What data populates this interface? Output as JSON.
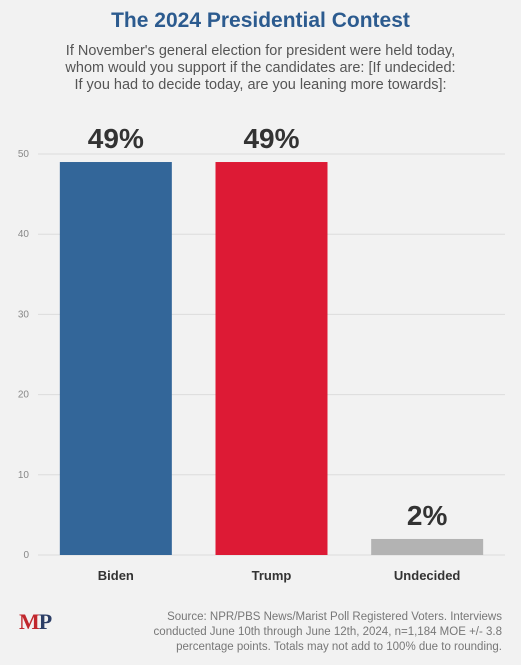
{
  "header": {
    "title": "The 2024 Presidential Contest",
    "subtitle_lines": [
      "If November's general election for president were held today,",
      "whom would you support if the candidates are: [If undecided:",
      "If you had to decide today, are you leaning more towards]:"
    ]
  },
  "chart_data": {
    "type": "bar",
    "categories": [
      "Biden",
      "Trump",
      "Undecided"
    ],
    "values": [
      49,
      49,
      2
    ],
    "data_labels": [
      "49%",
      "49%",
      "2%"
    ],
    "colors": [
      "#336699",
      "#dd1a35",
      "#b3b3b3"
    ],
    "yticks": [
      "0",
      "10",
      "20",
      "30",
      "40",
      "50"
    ],
    "ylim": [
      0,
      50
    ],
    "grid": true,
    "title": "The 2024 Presidential Contest"
  },
  "footer": {
    "logo_m": "M",
    "logo_p": "P",
    "source_lines": [
      "Source: NPR/PBS News/Marist Poll Registered Voters. Interviews",
      "conducted June 10th through June 12th, 2024, n=1,184 MOE +/- 3.8",
      "percentage points. Totals may not add to 100% due to rounding."
    ]
  }
}
